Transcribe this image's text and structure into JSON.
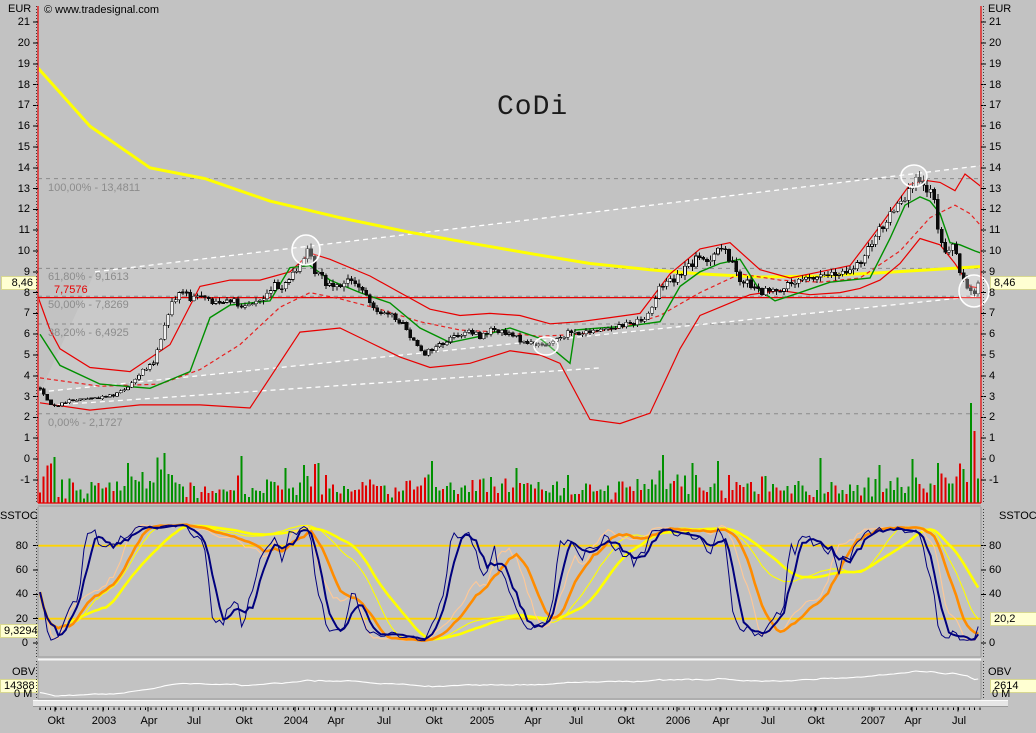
{
  "app": {
    "copyright": "© www.tradesignal.com",
    "currency_label": "EUR"
  },
  "colors": {
    "background": "#c2c2c2",
    "highlight_bg": "#ffffd2",
    "red": "#e80000",
    "green": "#009000",
    "yellow_ma": "#ffff00",
    "gold_level": "#ffd400",
    "navy": "#00007e",
    "orange": "#ff8c00",
    "peach": "#ffc896",
    "white": "#ffffff",
    "fib_gray": "#8c8c8c"
  },
  "main_axis": {
    "unit": "EUR",
    "ticks": [
      21,
      20,
      19,
      18,
      17,
      16,
      15,
      14,
      13,
      12,
      11,
      10,
      9,
      8,
      7,
      6,
      5,
      4,
      3,
      2,
      1,
      0,
      -1
    ],
    "current_price": "8,46",
    "current_price_value": 8.46
  },
  "price_line": {
    "label": "7,7576",
    "value": 7.7576
  },
  "fibonacci": [
    {
      "label": "100,00% - 13,4811",
      "value": 13.4811
    },
    {
      "label": "61,80% - 9,1613",
      "value": 9.1613
    },
    {
      "label": "50,00% - 7,8269",
      "value": 7.8269
    },
    {
      "label": "38,20% - 6,4925",
      "value": 6.4925
    },
    {
      "label": "0,00% - 2,1727",
      "value": 2.1727
    }
  ],
  "sstoc": {
    "label": "SSTOC",
    "ticks": [
      80,
      60,
      40,
      20,
      0
    ],
    "right_ticks": [
      80,
      60,
      40,
      0
    ],
    "levels": [
      80,
      20
    ],
    "left_value": "9,3294",
    "right_value": "20,2",
    "lines": [
      "stochastic-fast-navy",
      "stochastic-fast-signal-navy",
      "stochastic-slow-orange",
      "stochastic-slow-signal-peach",
      "stochastic-long-yellow",
      "stochastic-long-signal-yellow"
    ]
  },
  "obv": {
    "label": "OBV",
    "left_value": "14388",
    "right_value": "2614",
    "zero_label": "0 M"
  },
  "timeline": {
    "labels": [
      {
        "l": "Okt",
        "x": 55
      },
      {
        "l": "2003",
        "x": 103
      },
      {
        "l": "Apr",
        "x": 148
      },
      {
        "l": "Jul",
        "x": 193
      },
      {
        "l": "Okt",
        "x": 243
      },
      {
        "l": "2004",
        "x": 295
      },
      {
        "l": "Apr",
        "x": 335
      },
      {
        "l": "Jul",
        "x": 383
      },
      {
        "l": "Okt",
        "x": 433
      },
      {
        "l": "2005",
        "x": 481
      },
      {
        "l": "Apr",
        "x": 532
      },
      {
        "l": "Jul",
        "x": 575
      },
      {
        "l": "Okt",
        "x": 625
      },
      {
        "l": "2006",
        "x": 677
      },
      {
        "l": "Apr",
        "x": 720
      },
      {
        "l": "Jul",
        "x": 767
      },
      {
        "l": "Okt",
        "x": 815
      },
      {
        "l": "2007",
        "x": 872
      },
      {
        "l": "Apr",
        "x": 912
      },
      {
        "l": "Jul",
        "x": 958
      }
    ]
  },
  "chart_data": {
    "type": "candlestick",
    "title": "CoDi",
    "ylabel": "EUR",
    "ylim": [
      -1,
      21
    ],
    "x_span": "Okt 2002 - Aug 2007, weekly bars",
    "price_anchors": [
      [
        0,
        3.4
      ],
      [
        2,
        2.8
      ],
      [
        4,
        2.55
      ],
      [
        8,
        2.8
      ],
      [
        12,
        2.9
      ],
      [
        16,
        2.95
      ],
      [
        20,
        3.1
      ],
      [
        24,
        3.5
      ],
      [
        28,
        4.2
      ],
      [
        31,
        4.6
      ],
      [
        33,
        5.8
      ],
      [
        35,
        7.0
      ],
      [
        37,
        7.8
      ],
      [
        39,
        8.1
      ],
      [
        41,
        7.6
      ],
      [
        44,
        8.0
      ],
      [
        47,
        7.5
      ],
      [
        50,
        7.7
      ],
      [
        53,
        7.6
      ],
      [
        55,
        7.2
      ],
      [
        58,
        7.5
      ],
      [
        61,
        7.7
      ],
      [
        64,
        8.3
      ],
      [
        67,
        8.5
      ],
      [
        70,
        9.0
      ],
      [
        72,
        9.7
      ],
      [
        73,
        9.9
      ],
      [
        75,
        9.1
      ],
      [
        78,
        8.5
      ],
      [
        81,
        8.4
      ],
      [
        84,
        8.6
      ],
      [
        87,
        8.3
      ],
      [
        90,
        7.5
      ],
      [
        93,
        7.1
      ],
      [
        96,
        6.8
      ],
      [
        99,
        6.5
      ],
      [
        102,
        5.7
      ],
      [
        105,
        5.1
      ],
      [
        108,
        5.4
      ],
      [
        111,
        5.7
      ],
      [
        114,
        6.0
      ],
      [
        117,
        6.1
      ],
      [
        120,
        5.9
      ],
      [
        123,
        6.2
      ],
      [
        126,
        6.1
      ],
      [
        129,
        5.9
      ],
      [
        132,
        5.7
      ],
      [
        135,
        5.5
      ],
      [
        138,
        5.45
      ],
      [
        141,
        5.8
      ],
      [
        144,
        6.1
      ],
      [
        147,
        6.0
      ],
      [
        150,
        6.1
      ],
      [
        153,
        6.25
      ],
      [
        156,
        6.35
      ],
      [
        159,
        6.45
      ],
      [
        162,
        6.55
      ],
      [
        165,
        6.8
      ],
      [
        167,
        7.3
      ],
      [
        169,
        8.2
      ],
      [
        171,
        8.6
      ],
      [
        174,
        8.8
      ],
      [
        176,
        9.2
      ],
      [
        179,
        9.6
      ],
      [
        182,
        9.5
      ],
      [
        184,
        9.9
      ],
      [
        185,
        10.2
      ],
      [
        187,
        9.9
      ],
      [
        189,
        9.4
      ],
      [
        191,
        8.7
      ],
      [
        194,
        8.3
      ],
      [
        197,
        8.0
      ],
      [
        200,
        8.1
      ],
      [
        203,
        8.3
      ],
      [
        206,
        8.5
      ],
      [
        209,
        8.6
      ],
      [
        212,
        8.8
      ],
      [
        215,
        8.9
      ],
      [
        218,
        8.8
      ],
      [
        221,
        9.0
      ],
      [
        224,
        9.5
      ],
      [
        226,
        10.0
      ],
      [
        229,
        11.0
      ],
      [
        232,
        11.8
      ],
      [
        235,
        12.5
      ],
      [
        237,
        13.1
      ],
      [
        238,
        13.3
      ],
      [
        240,
        13.1
      ],
      [
        242,
        12.9
      ],
      [
        244,
        12.5
      ],
      [
        245,
        10.9
      ],
      [
        247,
        9.9
      ],
      [
        249,
        10.3
      ],
      [
        251,
        9.1
      ],
      [
        253,
        8.3
      ],
      [
        255,
        8.1
      ],
      [
        256,
        8.46
      ]
    ],
    "yellow_ma": [
      [
        38,
        18.8
      ],
      [
        90,
        16.0
      ],
      [
        150,
        14.0
      ],
      [
        205,
        13.48
      ],
      [
        270,
        12.4
      ],
      [
        340,
        11.6
      ],
      [
        410,
        10.9
      ],
      [
        480,
        10.3
      ],
      [
        540,
        9.8
      ],
      [
        590,
        9.4
      ],
      [
        650,
        9.1
      ],
      [
        700,
        8.9
      ],
      [
        760,
        8.75
      ],
      [
        820,
        8.8
      ],
      [
        880,
        8.95
      ],
      [
        930,
        9.1
      ],
      [
        981,
        9.25
      ]
    ],
    "green_ma": [
      [
        40,
        6.0
      ],
      [
        60,
        4.5
      ],
      [
        100,
        3.6
      ],
      [
        150,
        3.4
      ],
      [
        190,
        4.2
      ],
      [
        210,
        6.8
      ],
      [
        230,
        7.4
      ],
      [
        270,
        7.6
      ],
      [
        290,
        9.2
      ],
      [
        310,
        9.3
      ],
      [
        330,
        8.6
      ],
      [
        360,
        8.0
      ],
      [
        390,
        7.5
      ],
      [
        420,
        6.3
      ],
      [
        450,
        5.6
      ],
      [
        480,
        5.9
      ],
      [
        510,
        6.3
      ],
      [
        540,
        5.8
      ],
      [
        570,
        4.6
      ],
      [
        575,
        6.2
      ],
      [
        600,
        6.3
      ],
      [
        630,
        6.4
      ],
      [
        660,
        6.6
      ],
      [
        680,
        8.3
      ],
      [
        700,
        9.0
      ],
      [
        720,
        9.4
      ],
      [
        740,
        9.6
      ],
      [
        760,
        8.1
      ],
      [
        775,
        7.6
      ],
      [
        800,
        8.0
      ],
      [
        830,
        8.5
      ],
      [
        850,
        8.6
      ],
      [
        870,
        8.7
      ],
      [
        890,
        10.6
      ],
      [
        905,
        12.2
      ],
      [
        920,
        12.6
      ],
      [
        930,
        12.4
      ],
      [
        940,
        11.8
      ],
      [
        950,
        10.4
      ],
      [
        960,
        10.3
      ],
      [
        975,
        10.0
      ],
      [
        981,
        9.9
      ]
    ],
    "red_upper": [
      [
        38,
        7.8
      ],
      [
        50,
        6.2
      ],
      [
        60,
        5.3
      ],
      [
        90,
        4.4
      ],
      [
        130,
        4.2
      ],
      [
        170,
        5.5
      ],
      [
        200,
        8.3
      ],
      [
        230,
        8.6
      ],
      [
        260,
        8.6
      ],
      [
        290,
        9.0
      ],
      [
        310,
        9.9
      ],
      [
        330,
        9.6
      ],
      [
        370,
        8.8
      ],
      [
        400,
        8.0
      ],
      [
        430,
        7.2
      ],
      [
        460,
        6.9
      ],
      [
        490,
        7.0
      ],
      [
        520,
        6.9
      ],
      [
        550,
        6.5
      ],
      [
        580,
        6.6
      ],
      [
        610,
        6.8
      ],
      [
        640,
        7.0
      ],
      [
        670,
        8.9
      ],
      [
        700,
        10.1
      ],
      [
        730,
        10.4
      ],
      [
        760,
        9.1
      ],
      [
        790,
        8.7
      ],
      [
        820,
        9.0
      ],
      [
        850,
        9.3
      ],
      [
        880,
        11.2
      ],
      [
        910,
        13.2
      ],
      [
        925,
        13.4
      ],
      [
        940,
        13.3
      ],
      [
        955,
        12.9
      ],
      [
        965,
        13.7
      ],
      [
        981,
        13.1
      ]
    ],
    "red_lower": [
      [
        40,
        2.7
      ],
      [
        90,
        2.35
      ],
      [
        140,
        2.6
      ],
      [
        200,
        2.6
      ],
      [
        250,
        2.45
      ],
      [
        300,
        6.1
      ],
      [
        340,
        6.3
      ],
      [
        370,
        5.6
      ],
      [
        400,
        4.9
      ],
      [
        430,
        4.4
      ],
      [
        470,
        4.6
      ],
      [
        510,
        5.2
      ],
      [
        540,
        5.0
      ],
      [
        560,
        4.6
      ],
      [
        590,
        1.9
      ],
      [
        620,
        1.7
      ],
      [
        650,
        2.2
      ],
      [
        680,
        5.3
      ],
      [
        700,
        6.9
      ],
      [
        720,
        7.3
      ],
      [
        750,
        7.9
      ],
      [
        780,
        8.1
      ],
      [
        810,
        7.9
      ],
      [
        840,
        8.0
      ],
      [
        860,
        8.2
      ],
      [
        880,
        8.6
      ],
      [
        900,
        9.4
      ],
      [
        920,
        10.6
      ],
      [
        940,
        10.3
      ],
      [
        955,
        9.4
      ],
      [
        970,
        8.3
      ],
      [
        981,
        8.2
      ]
    ],
    "red_mid_dashed": [
      [
        40,
        3.9
      ],
      [
        100,
        3.5
      ],
      [
        160,
        3.6
      ],
      [
        200,
        4.3
      ],
      [
        240,
        5.5
      ],
      [
        280,
        7.3
      ],
      [
        310,
        8.0
      ],
      [
        340,
        7.7
      ],
      [
        380,
        7.2
      ],
      [
        420,
        6.6
      ],
      [
        460,
        6.2
      ],
      [
        500,
        6.1
      ],
      [
        540,
        5.9
      ],
      [
        580,
        6.0
      ],
      [
        620,
        6.3
      ],
      [
        660,
        6.9
      ],
      [
        700,
        8.0
      ],
      [
        740,
        8.9
      ],
      [
        780,
        8.6
      ],
      [
        820,
        8.5
      ],
      [
        860,
        8.7
      ],
      [
        900,
        10.0
      ],
      [
        930,
        11.6
      ],
      [
        955,
        12.2
      ],
      [
        970,
        11.8
      ],
      [
        981,
        11.2
      ]
    ],
    "white_channel_rays": [
      {
        "x1": 95,
        "v1": 9.0,
        "x2": 981,
        "v2": 14.1
      },
      {
        "x1": 40,
        "v1": 3.22,
        "x2": 981,
        "v2": 7.84
      },
      {
        "x1": 55,
        "v1": 2.6,
        "x2": 600,
        "v2": 4.38
      }
    ],
    "circle_markers": [
      {
        "x": 306,
        "y": 250,
        "rx": 14,
        "ry": 15
      },
      {
        "x": 546,
        "y": 346,
        "rx": 12,
        "ry": 9
      },
      {
        "x": 914,
        "y": 176,
        "rx": 13,
        "ry": 11
      },
      {
        "x": 974,
        "y": 291,
        "rx": 15,
        "ry": 16
      }
    ],
    "volume_spikes": [
      [
        4,
        46,
        "g"
      ],
      [
        24,
        40,
        "g"
      ],
      [
        34,
        50,
        "g"
      ],
      [
        55,
        47,
        "g"
      ],
      [
        67,
        35,
        "g"
      ],
      [
        72,
        38,
        "g"
      ],
      [
        76,
        40,
        "g"
      ],
      [
        107,
        42,
        "g"
      ],
      [
        130,
        35,
        "g"
      ],
      [
        170,
        48,
        "g"
      ],
      [
        178,
        40,
        "g"
      ],
      [
        185,
        42,
        "g"
      ],
      [
        213,
        45,
        "g"
      ],
      [
        229,
        38,
        "g"
      ],
      [
        238,
        44,
        "g"
      ],
      [
        245,
        40,
        "g"
      ],
      [
        252,
        34,
        "g"
      ],
      [
        254,
        100,
        "g"
      ],
      [
        255,
        72,
        "r"
      ]
    ]
  }
}
